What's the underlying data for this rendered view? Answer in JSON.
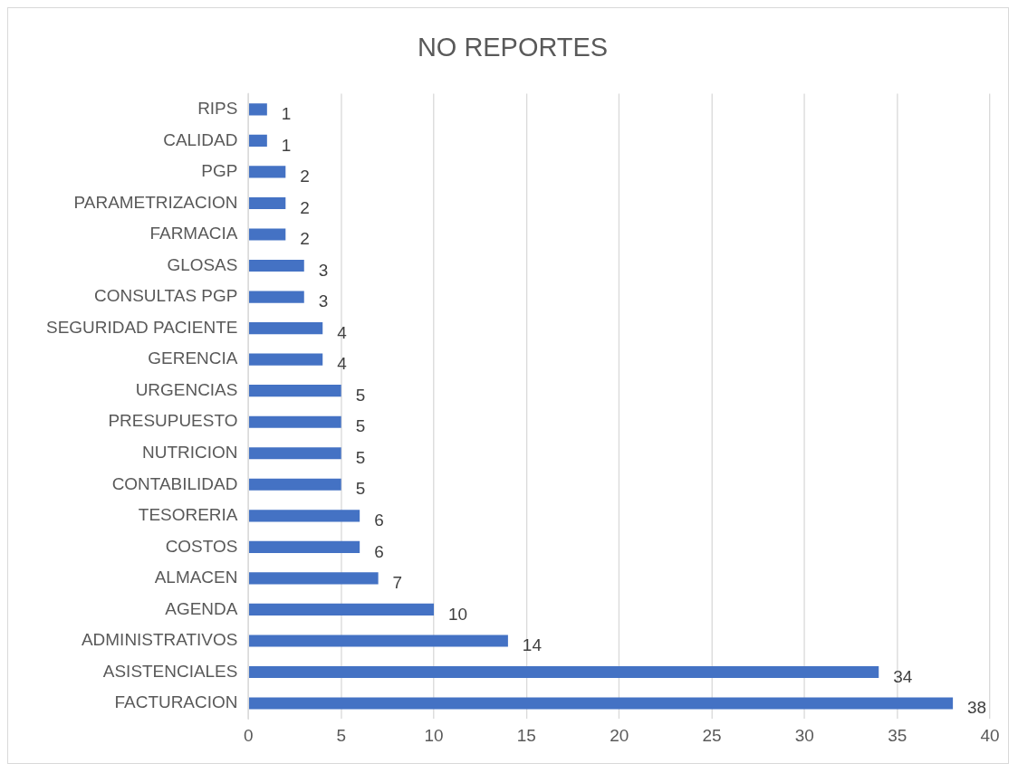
{
  "chart_data": {
    "type": "bar",
    "orientation": "horizontal",
    "title": "NO REPORTES",
    "categories": [
      "RIPS",
      "CALIDAD",
      "PGP",
      "PARAMETRIZACION",
      "FARMACIA",
      "GLOSAS",
      "CONSULTAS PGP",
      "SEGURIDAD PACIENTE",
      "GERENCIA",
      "URGENCIAS",
      "PRESUPUESTO",
      "NUTRICION",
      "CONTABILIDAD",
      "TESORERIA",
      "COSTOS",
      "ALMACEN",
      "AGENDA",
      "ADMINISTRATIVOS",
      "ASISTENCIALES",
      "FACTURACION"
    ],
    "values": [
      1,
      1,
      2,
      2,
      2,
      3,
      3,
      4,
      4,
      5,
      5,
      5,
      5,
      6,
      6,
      7,
      10,
      14,
      34,
      38
    ],
    "color": "#4472c4",
    "xlim": [
      0,
      40
    ],
    "xticks": [
      0,
      5,
      10,
      15,
      20,
      25,
      30,
      35,
      40
    ],
    "grid": "x",
    "data_labels": true,
    "legend": false
  }
}
